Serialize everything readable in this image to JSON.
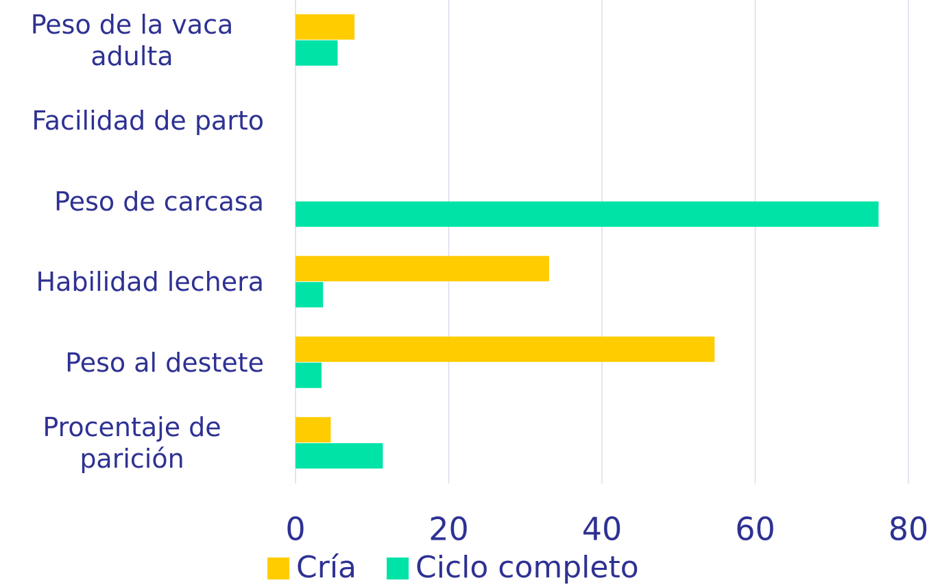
{
  "chart_data": {
    "type": "hbar",
    "categories": [
      "Peso de la vaca adulta",
      "Facilidad de parto",
      "Peso de carcasa",
      "Habilidad lechera",
      "Peso al destete",
      "Procentaje de parición"
    ],
    "series": [
      {
        "name": "Cría",
        "color": "#ffcc00",
        "values": [
          7.7,
          0,
          0,
          33.1,
          54.7,
          4.6
        ]
      },
      {
        "name": "Ciclo completo",
        "color": "#00e3a6",
        "values": [
          5.5,
          0,
          76.1,
          3.6,
          3.4,
          11.4
        ]
      }
    ],
    "xlim": [
      0,
      80
    ],
    "xticks": [
      0,
      20,
      40,
      60,
      80
    ],
    "grid": true
  }
}
